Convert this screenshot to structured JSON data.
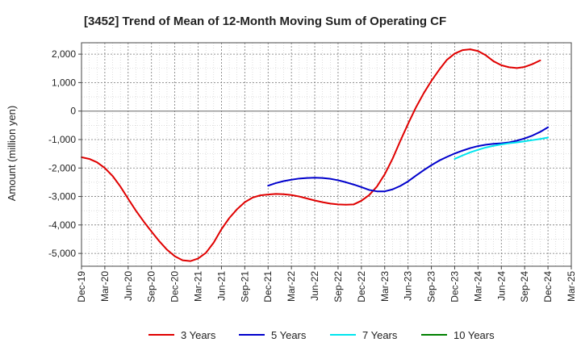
{
  "chart_data": {
    "type": "line",
    "title": "[3452]  Trend of Mean of 12-Month Moving Sum of Operating CF",
    "ylabel": "Amount (million yen)",
    "xlabel": "",
    "ylim": [
      -5450,
      2400
    ],
    "x_tick_labels": [
      "Dec-19",
      "Mar-20",
      "Jun-20",
      "Sep-20",
      "Dec-20",
      "Mar-21",
      "Jun-21",
      "Sep-21",
      "Dec-21",
      "Mar-22",
      "Jun-22",
      "Sep-22",
      "Dec-22",
      "Mar-23",
      "Jun-23",
      "Sep-23",
      "Dec-23",
      "Mar-24",
      "Jun-24",
      "Sep-24",
      "Dec-24",
      "Mar-25"
    ],
    "y_tick_values": [
      2000,
      1000,
      0,
      -1000,
      -2000,
      -3000,
      -4000,
      -5000
    ],
    "y_tick_labels": [
      "2,000",
      "1,000",
      "0",
      "-1,000",
      "-2,000",
      "-3,000",
      "-4,000",
      "-5,000"
    ],
    "grid": true,
    "legend_position": "bottom",
    "series": [
      {
        "name": "3 Years",
        "color": "#e00000",
        "start_index": 0,
        "values": [
          -1620,
          -1680,
          -1800,
          -2000,
          -2280,
          -2650,
          -3080,
          -3500,
          -3880,
          -4230,
          -4570,
          -4870,
          -5100,
          -5240,
          -5270,
          -5180,
          -4980,
          -4620,
          -4150,
          -3760,
          -3450,
          -3200,
          -3040,
          -2960,
          -2930,
          -2910,
          -2920,
          -2950,
          -3000,
          -3070,
          -3140,
          -3200,
          -3250,
          -3280,
          -3290,
          -3280,
          -3150,
          -2950,
          -2650,
          -2220,
          -1680,
          -1050,
          -450,
          120,
          620,
          1060,
          1450,
          1800,
          2020,
          2140,
          2170,
          2110,
          1960,
          1750,
          1610,
          1540,
          1510,
          1550,
          1650,
          1780
        ]
      },
      {
        "name": "5 Years",
        "color": "#0000cc",
        "start_index": 24,
        "values": [
          -2620,
          -2530,
          -2460,
          -2410,
          -2370,
          -2350,
          -2340,
          -2350,
          -2380,
          -2430,
          -2500,
          -2580,
          -2670,
          -2770,
          -2820,
          -2820,
          -2750,
          -2630,
          -2470,
          -2270,
          -2080,
          -1900,
          -1740,
          -1610,
          -1490,
          -1390,
          -1300,
          -1230,
          -1180,
          -1150,
          -1130,
          -1100,
          -1040,
          -960,
          -860,
          -730,
          -570
        ]
      },
      {
        "name": "7 Years",
        "color": "#00e5ee",
        "start_index": 48,
        "values": [
          -1680,
          -1560,
          -1450,
          -1360,
          -1280,
          -1220,
          -1170,
          -1130,
          -1100,
          -1060,
          -1020,
          -980,
          -930
        ]
      },
      {
        "name": "10 Years",
        "color": "#008000",
        "start_index": 60,
        "values": []
      }
    ]
  }
}
